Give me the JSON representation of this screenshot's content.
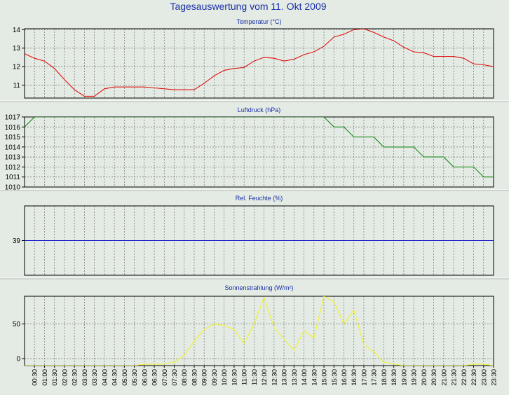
{
  "page_title": "Tagesauswertung vom 11. Okt 2009",
  "x_tick_labels": [
    "00:30",
    "01:00",
    "01:30",
    "02:00",
    "02:30",
    "03:00",
    "03:30",
    "04:00",
    "04:30",
    "05:00",
    "05:30",
    "06:00",
    "06:30",
    "07:00",
    "07:30",
    "08:00",
    "08:30",
    "09:00",
    "09:30",
    "10:00",
    "10:30",
    "11:00",
    "11:30",
    "12:00",
    "12:30",
    "13:00",
    "13:30",
    "14:00",
    "14:30",
    "15:00",
    "15:30",
    "16:00",
    "16:30",
    "17:00",
    "17:30",
    "18:00",
    "18:30",
    "19:00",
    "19:30",
    "20:00",
    "20:30",
    "21:00",
    "21:30",
    "22:00",
    "22:30",
    "23:00",
    "23:30"
  ],
  "colors": {
    "background": "#e4ebe4",
    "plot_bg": "#e4ebe4",
    "title": "#1a2fa8",
    "panel_title": "#1a2fa8",
    "temperature": "#e01010",
    "pressure": "#1a8a1a",
    "humidity": "#1010c8",
    "solar": "#f0f030",
    "grid": "#707070"
  },
  "chart_data": [
    {
      "type": "line",
      "title": "Temperatur (°C)",
      "ylim": [
        10.3,
        14.05
      ],
      "yticks": [
        11,
        12,
        13,
        14
      ],
      "xlim": [
        0,
        47
      ],
      "grid": true,
      "series": [
        {
          "color_key": "temperature",
          "x": [
            0,
            1,
            2,
            3,
            4,
            5,
            6,
            7,
            8,
            9,
            10,
            11,
            12,
            13,
            14,
            15,
            16,
            17,
            18,
            19,
            20,
            21,
            22,
            23,
            24,
            25,
            26,
            27,
            28,
            29,
            30,
            31,
            32,
            33,
            34,
            35,
            36,
            37,
            38,
            39,
            40,
            41,
            42,
            43,
            44,
            45,
            46,
            47
          ],
          "values": [
            12.7,
            12.45,
            12.3,
            11.9,
            11.3,
            10.75,
            10.4,
            10.4,
            10.8,
            10.9,
            10.9,
            10.9,
            10.9,
            10.85,
            10.8,
            10.75,
            10.75,
            10.75,
            11.1,
            11.5,
            11.8,
            11.9,
            11.95,
            12.3,
            12.5,
            12.45,
            12.3,
            12.4,
            12.65,
            12.8,
            13.1,
            13.6,
            13.75,
            14.0,
            14.05,
            13.85,
            13.6,
            13.4,
            13.05,
            12.8,
            12.75,
            12.55,
            12.55,
            12.55,
            12.45,
            12.15,
            12.1,
            12.0
          ]
        }
      ]
    },
    {
      "type": "line",
      "title": "Luftdruck (hPa)",
      "ylim": [
        1010,
        1017
      ],
      "yticks": [
        1010,
        1011,
        1012,
        1013,
        1014,
        1015,
        1016,
        1017
      ],
      "xlim": [
        0,
        47
      ],
      "grid": true,
      "series": [
        {
          "color_key": "pressure",
          "x": [
            0,
            1,
            2,
            3,
            4,
            5,
            6,
            7,
            8,
            9,
            10,
            11,
            12,
            13,
            14,
            15,
            16,
            17,
            18,
            19,
            20,
            21,
            22,
            23,
            24,
            25,
            26,
            27,
            28,
            29,
            30,
            31,
            32,
            33,
            34,
            35,
            36,
            37,
            38,
            39,
            40,
            41,
            42,
            43,
            44,
            45,
            46,
            47
          ],
          "values": [
            1016,
            1017,
            1017,
            1017,
            1017,
            1017,
            1017,
            1017,
            1017,
            1017,
            1017,
            1017,
            1017,
            1017,
            1017,
            1017,
            1017,
            1017,
            1017,
            1017,
            1017,
            1017,
            1017,
            1017,
            1017,
            1017,
            1017,
            1017,
            1017,
            1017,
            1017,
            1016,
            1016,
            1015,
            1015,
            1015,
            1014,
            1014,
            1014,
            1014,
            1013,
            1013,
            1013,
            1012,
            1012,
            1012,
            1011,
            1011
          ]
        }
      ]
    },
    {
      "type": "line",
      "title": "Rel. Feuchte (%)",
      "ylim": [
        0,
        78
      ],
      "yticks": [
        39
      ],
      "xlim": [
        0,
        47
      ],
      "grid": true,
      "series": [
        {
          "color_key": "humidity",
          "x": [
            0,
            47
          ],
          "values": [
            39,
            39
          ]
        }
      ]
    },
    {
      "type": "line",
      "title": "Sonnenstrahlung (W/m²)",
      "ylim": [
        -10,
        90
      ],
      "yticks": [
        0,
        50
      ],
      "xlim": [
        0,
        47
      ],
      "grid": true,
      "series": [
        {
          "color_key": "solar",
          "x": [
            0,
            1,
            2,
            3,
            4,
            5,
            6,
            7,
            8,
            9,
            10,
            11,
            12,
            13,
            14,
            15,
            16,
            17,
            18,
            19,
            20,
            21,
            22,
            23,
            24,
            25,
            26,
            27,
            28,
            29,
            30,
            31,
            32,
            33,
            34,
            35,
            36,
            37,
            38,
            39,
            40,
            41,
            42,
            43,
            44,
            45,
            46,
            47
          ],
          "values": [
            -10,
            -10,
            -10,
            -10,
            -10,
            -10,
            -10,
            -10,
            -10,
            -10,
            -10,
            -10,
            -8,
            -8,
            -8,
            -5,
            5,
            25,
            42,
            50,
            48,
            42,
            22,
            50,
            88,
            45,
            28,
            12,
            40,
            30,
            90,
            82,
            50,
            70,
            20,
            10,
            -5,
            -8,
            -10,
            -10,
            -10,
            -10,
            -10,
            -10,
            -10,
            -8,
            -8,
            -10
          ]
        }
      ]
    }
  ]
}
